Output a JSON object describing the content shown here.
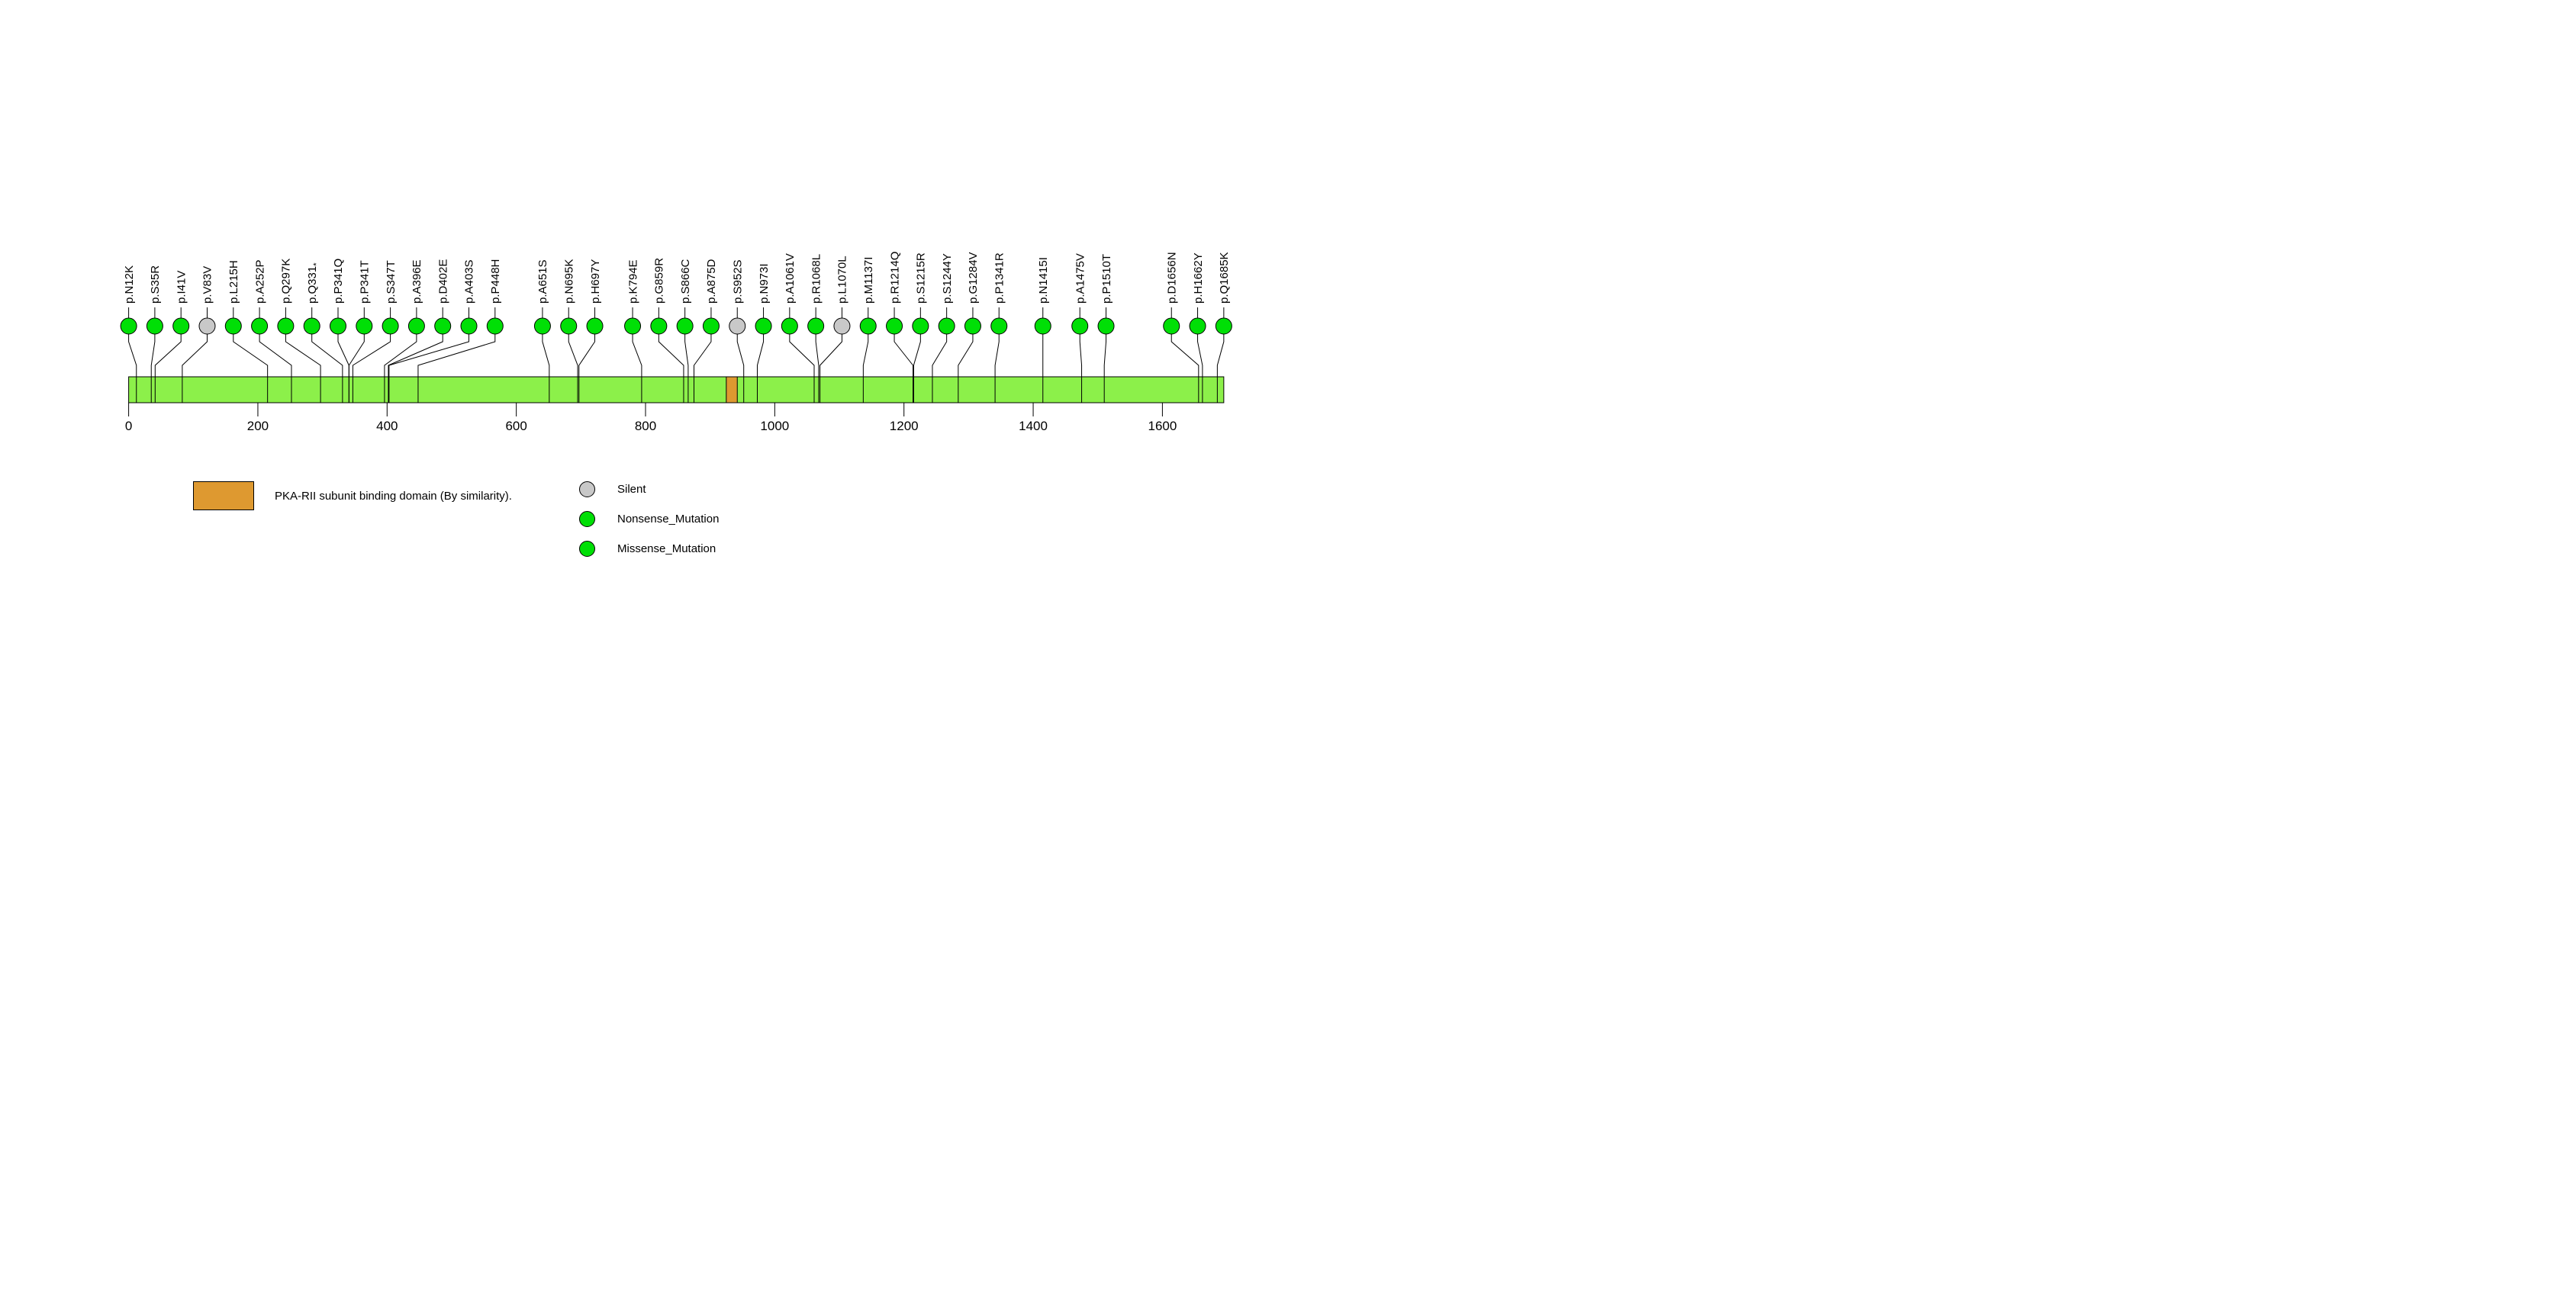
{
  "chart_data": {
    "type": "lollipop",
    "protein_length": 1695,
    "axis_ticks": [
      0,
      200,
      400,
      600,
      800,
      1000,
      1200,
      1400,
      1600
    ],
    "domains": [
      {
        "name": "PKA-RII subunit binding domain (By similarity).",
        "start": 925,
        "end": 942
      }
    ],
    "mutations": [
      {
        "label": "p.N12K",
        "position": 12,
        "classification": "Missense_Mutation"
      },
      {
        "label": "p.S35R",
        "position": 35,
        "classification": "Missense_Mutation"
      },
      {
        "label": "p.I41V",
        "position": 41,
        "classification": "Missense_Mutation"
      },
      {
        "label": "p.V83V",
        "position": 83,
        "classification": "Silent"
      },
      {
        "label": "p.L215H",
        "position": 215,
        "classification": "Missense_Mutation"
      },
      {
        "label": "p.A252P",
        "position": 252,
        "classification": "Missense_Mutation"
      },
      {
        "label": "p.Q297K",
        "position": 297,
        "classification": "Missense_Mutation"
      },
      {
        "label": "p.Q331*",
        "position": 331,
        "classification": "Nonsense_Mutation"
      },
      {
        "label": "p.P341Q",
        "position": 341,
        "classification": "Missense_Mutation"
      },
      {
        "label": "p.P341T",
        "position": 341,
        "classification": "Missense_Mutation"
      },
      {
        "label": "p.S347T",
        "position": 347,
        "classification": "Missense_Mutation"
      },
      {
        "label": "p.A396E",
        "position": 396,
        "classification": "Missense_Mutation"
      },
      {
        "label": "p.D402E",
        "position": 402,
        "classification": "Missense_Mutation"
      },
      {
        "label": "p.A403S",
        "position": 403,
        "classification": "Missense_Mutation"
      },
      {
        "label": "p.P448H",
        "position": 448,
        "classification": "Missense_Mutation"
      },
      {
        "label": "p.A651S",
        "position": 651,
        "classification": "Missense_Mutation"
      },
      {
        "label": "p.N695K",
        "position": 695,
        "classification": "Missense_Mutation"
      },
      {
        "label": "p.H697Y",
        "position": 697,
        "classification": "Missense_Mutation"
      },
      {
        "label": "p.K794E",
        "position": 794,
        "classification": "Missense_Mutation"
      },
      {
        "label": "p.G859R",
        "position": 859,
        "classification": "Missense_Mutation"
      },
      {
        "label": "p.S866C",
        "position": 866,
        "classification": "Missense_Mutation"
      },
      {
        "label": "p.A875D",
        "position": 875,
        "classification": "Missense_Mutation"
      },
      {
        "label": "p.S952S",
        "position": 952,
        "classification": "Silent"
      },
      {
        "label": "p.N973I",
        "position": 973,
        "classification": "Missense_Mutation"
      },
      {
        "label": "p.A1061V",
        "position": 1061,
        "classification": "Missense_Mutation"
      },
      {
        "label": "p.R1068L",
        "position": 1068,
        "classification": "Missense_Mutation"
      },
      {
        "label": "p.L1070L",
        "position": 1070,
        "classification": "Silent"
      },
      {
        "label": "p.M1137I",
        "position": 1137,
        "classification": "Missense_Mutation"
      },
      {
        "label": "p.R1214Q",
        "position": 1214,
        "classification": "Missense_Mutation"
      },
      {
        "label": "p.S1215R",
        "position": 1215,
        "classification": "Missense_Mutation"
      },
      {
        "label": "p.S1244Y",
        "position": 1244,
        "classification": "Missense_Mutation"
      },
      {
        "label": "p.G1284V",
        "position": 1284,
        "classification": "Missense_Mutation"
      },
      {
        "label": "p.P1341R",
        "position": 1341,
        "classification": "Missense_Mutation"
      },
      {
        "label": "p.N1415I",
        "position": 1415,
        "classification": "Missense_Mutation"
      },
      {
        "label": "p.A1475V",
        "position": 1475,
        "classification": "Missense_Mutation"
      },
      {
        "label": "p.P1510T",
        "position": 1510,
        "classification": "Missense_Mutation"
      },
      {
        "label": "p.D1656N",
        "position": 1656,
        "classification": "Missense_Mutation"
      },
      {
        "label": "p.H1662Y",
        "position": 1662,
        "classification": "Missense_Mutation"
      },
      {
        "label": "p.Q1685K",
        "position": 1685,
        "classification": "Missense_Mutation"
      }
    ],
    "legend": {
      "domain_label": "PKA-RII subunit binding domain (By similarity).",
      "items": [
        {
          "label": "Silent",
          "color": "#C8C8C8"
        },
        {
          "label": "Nonsense_Mutation",
          "color": "#00DF06"
        },
        {
          "label": "Missense_Mutation",
          "color": "#00DF06"
        }
      ]
    },
    "colors": {
      "gene_bar": "#8CF04A",
      "domain": "#DE9930",
      "Silent": "#C8C8C8",
      "Nonsense_Mutation": "#00DF06",
      "Missense_Mutation": "#00DF06"
    }
  }
}
